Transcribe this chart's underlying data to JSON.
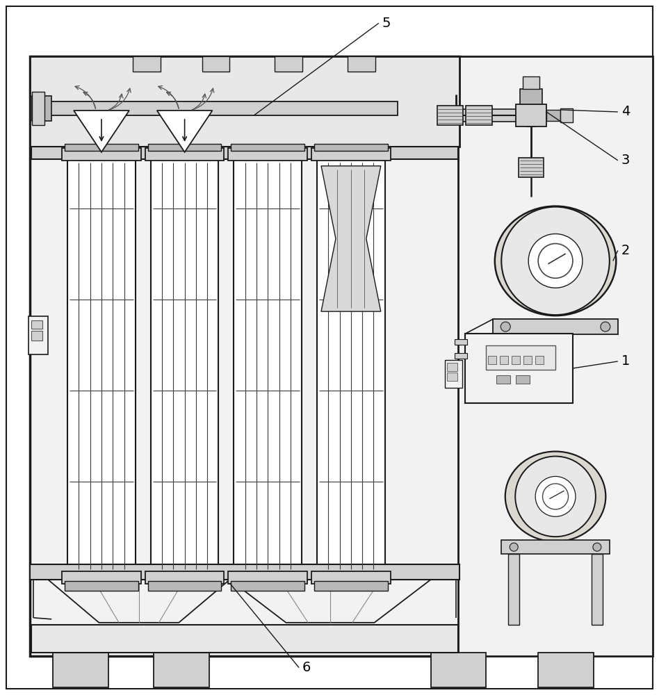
{
  "bg": "#ffffff",
  "lc": "#1a1a1a",
  "gray1": "#e8e8e8",
  "gray2": "#d0d0d0",
  "gray3": "#b8b8b8",
  "gray4": "#f2f2f2",
  "fig_w": 9.48,
  "fig_h": 10.0,
  "dpi": 100
}
